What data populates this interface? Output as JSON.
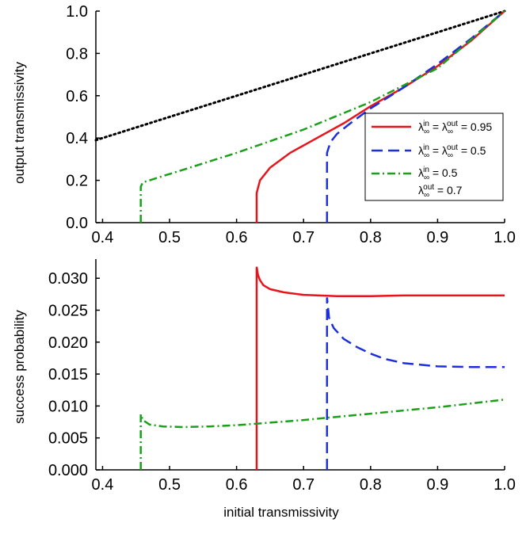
{
  "chart_data": [
    {
      "type": "line",
      "ylabel": "output transmissivity",
      "xlim": [
        0.39,
        1.0
      ],
      "ylim": [
        0.0,
        1.0
      ],
      "x_ticks": [
        "0.4",
        "0.5",
        "0.6",
        "0.7",
        "0.8",
        "0.9",
        "1.0"
      ],
      "y_ticks": [
        "0.0",
        "0.2",
        "0.4",
        "0.6",
        "0.8",
        "1.0"
      ],
      "legend_position": "center-right",
      "legend": [
        {
          "series": 1,
          "text": "λ∞in = λ∞out = 0.95"
        },
        {
          "series": 2,
          "text": "λ∞in = λ∞out = 0.5"
        },
        {
          "series": 3,
          "text": "λ∞in = 0.5, λ∞out = 0.7"
        }
      ],
      "series": [
        {
          "style": "dotted",
          "color": "#000000",
          "x": [
            0.39,
            1.0
          ],
          "y": [
            0.39,
            1.0
          ]
        },
        {
          "style": "solid",
          "color": "#e8141c",
          "x": [
            0.63,
            0.63,
            0.635,
            0.65,
            0.68,
            0.72,
            0.76,
            0.8,
            0.85,
            0.9,
            0.95,
            1.0
          ],
          "y": [
            0.0,
            0.14,
            0.2,
            0.26,
            0.33,
            0.4,
            0.47,
            0.55,
            0.64,
            0.74,
            0.86,
            1.0
          ]
        },
        {
          "style": "dashed",
          "color": "#1c2fdc",
          "x": [
            0.735,
            0.735,
            0.74,
            0.75,
            0.77,
            0.8,
            0.85,
            0.9,
            0.95,
            1.0
          ],
          "y": [
            0.0,
            0.33,
            0.38,
            0.42,
            0.47,
            0.54,
            0.64,
            0.75,
            0.87,
            1.0
          ]
        },
        {
          "style": "dashdot",
          "color": "#1aa01a",
          "x": [
            0.457,
            0.457,
            0.46,
            0.48,
            0.52,
            0.6,
            0.7,
            0.8,
            0.9,
            1.0
          ],
          "y": [
            0.0,
            0.17,
            0.19,
            0.21,
            0.25,
            0.33,
            0.44,
            0.57,
            0.73,
            1.0
          ]
        }
      ]
    },
    {
      "type": "line",
      "xlabel": "initial transmissivity",
      "ylabel": "success probability",
      "xlim": [
        0.39,
        1.0
      ],
      "ylim": [
        0.0,
        0.033
      ],
      "x_ticks": [
        "0.4",
        "0.5",
        "0.6",
        "0.7",
        "0.8",
        "0.9",
        "1.0"
      ],
      "y_ticks": [
        "0.000",
        "0.005",
        "0.010",
        "0.015",
        "0.020",
        "0.025",
        "0.030"
      ],
      "series": [
        {
          "style": "solid",
          "color": "#e8141c",
          "x": [
            0.63,
            0.63,
            0.632,
            0.635,
            0.64,
            0.65,
            0.67,
            0.7,
            0.75,
            0.8,
            0.85,
            0.9,
            0.95,
            1.0
          ],
          "y": [
            0.0,
            0.0318,
            0.0305,
            0.0297,
            0.0289,
            0.0283,
            0.0278,
            0.0274,
            0.0272,
            0.0272,
            0.0273,
            0.0273,
            0.0273,
            0.0273
          ]
        },
        {
          "style": "dashed",
          "color": "#1c2fdc",
          "x": [
            0.735,
            0.735,
            0.738,
            0.745,
            0.76,
            0.78,
            0.8,
            0.82,
            0.85,
            0.9,
            0.95,
            1.0
          ],
          "y": [
            0.0,
            0.027,
            0.0238,
            0.0222,
            0.0205,
            0.0192,
            0.0182,
            0.0174,
            0.0167,
            0.0162,
            0.0161,
            0.0161
          ]
        },
        {
          "style": "dashdot",
          "color": "#1aa01a",
          "x": [
            0.457,
            0.457,
            0.46,
            0.47,
            0.49,
            0.52,
            0.56,
            0.6,
            0.65,
            0.7,
            0.75,
            0.8,
            0.85,
            0.9,
            0.95,
            1.0
          ],
          "y": [
            0.0,
            0.0087,
            0.0078,
            0.0071,
            0.0068,
            0.0067,
            0.0068,
            0.007,
            0.0074,
            0.0078,
            0.0083,
            0.0088,
            0.0093,
            0.0098,
            0.0104,
            0.011
          ]
        }
      ]
    }
  ]
}
